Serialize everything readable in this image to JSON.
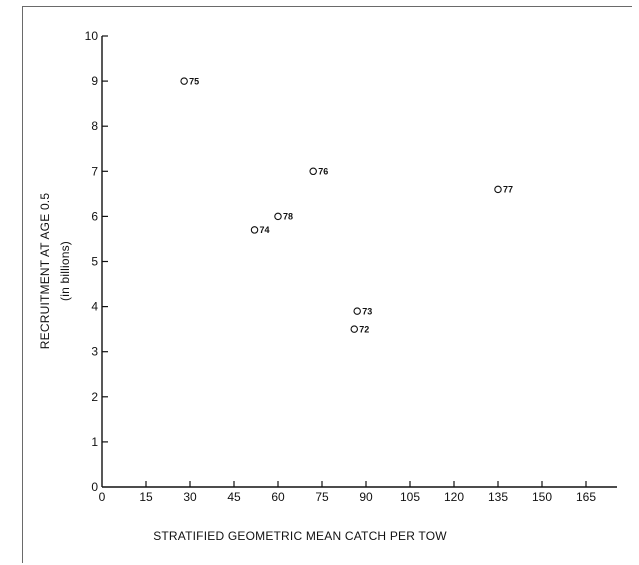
{
  "chart_data": {
    "type": "scatter",
    "title": "",
    "xlabel": "STRATIFIED GEOMETRIC MEAN CATCH PER TOW",
    "ylabel": "RECRUITMENT AT AGE 0.5",
    "ylabel_sub": "(in billions)",
    "xlim": [
      0,
      165
    ],
    "ylim": [
      0,
      10
    ],
    "x_ticks": [
      "0",
      "15",
      "30",
      "45",
      "60",
      "75",
      "90",
      "105",
      "120",
      "135",
      "150",
      "165"
    ],
    "y_ticks": [
      "0",
      "1",
      "2",
      "3",
      "4",
      "5",
      "6",
      "7",
      "8",
      "9",
      "10"
    ],
    "grid": false,
    "points": [
      {
        "x": 28,
        "y": 9.0,
        "label": "75"
      },
      {
        "x": 52,
        "y": 5.7,
        "label": "74"
      },
      {
        "x": 60,
        "y": 6.0,
        "label": "78"
      },
      {
        "x": 72,
        "y": 7.0,
        "label": "76"
      },
      {
        "x": 86,
        "y": 3.5,
        "label": "72"
      },
      {
        "x": 87,
        "y": 3.9,
        "label": "73"
      },
      {
        "x": 135,
        "y": 6.6,
        "label": "77"
      }
    ]
  }
}
